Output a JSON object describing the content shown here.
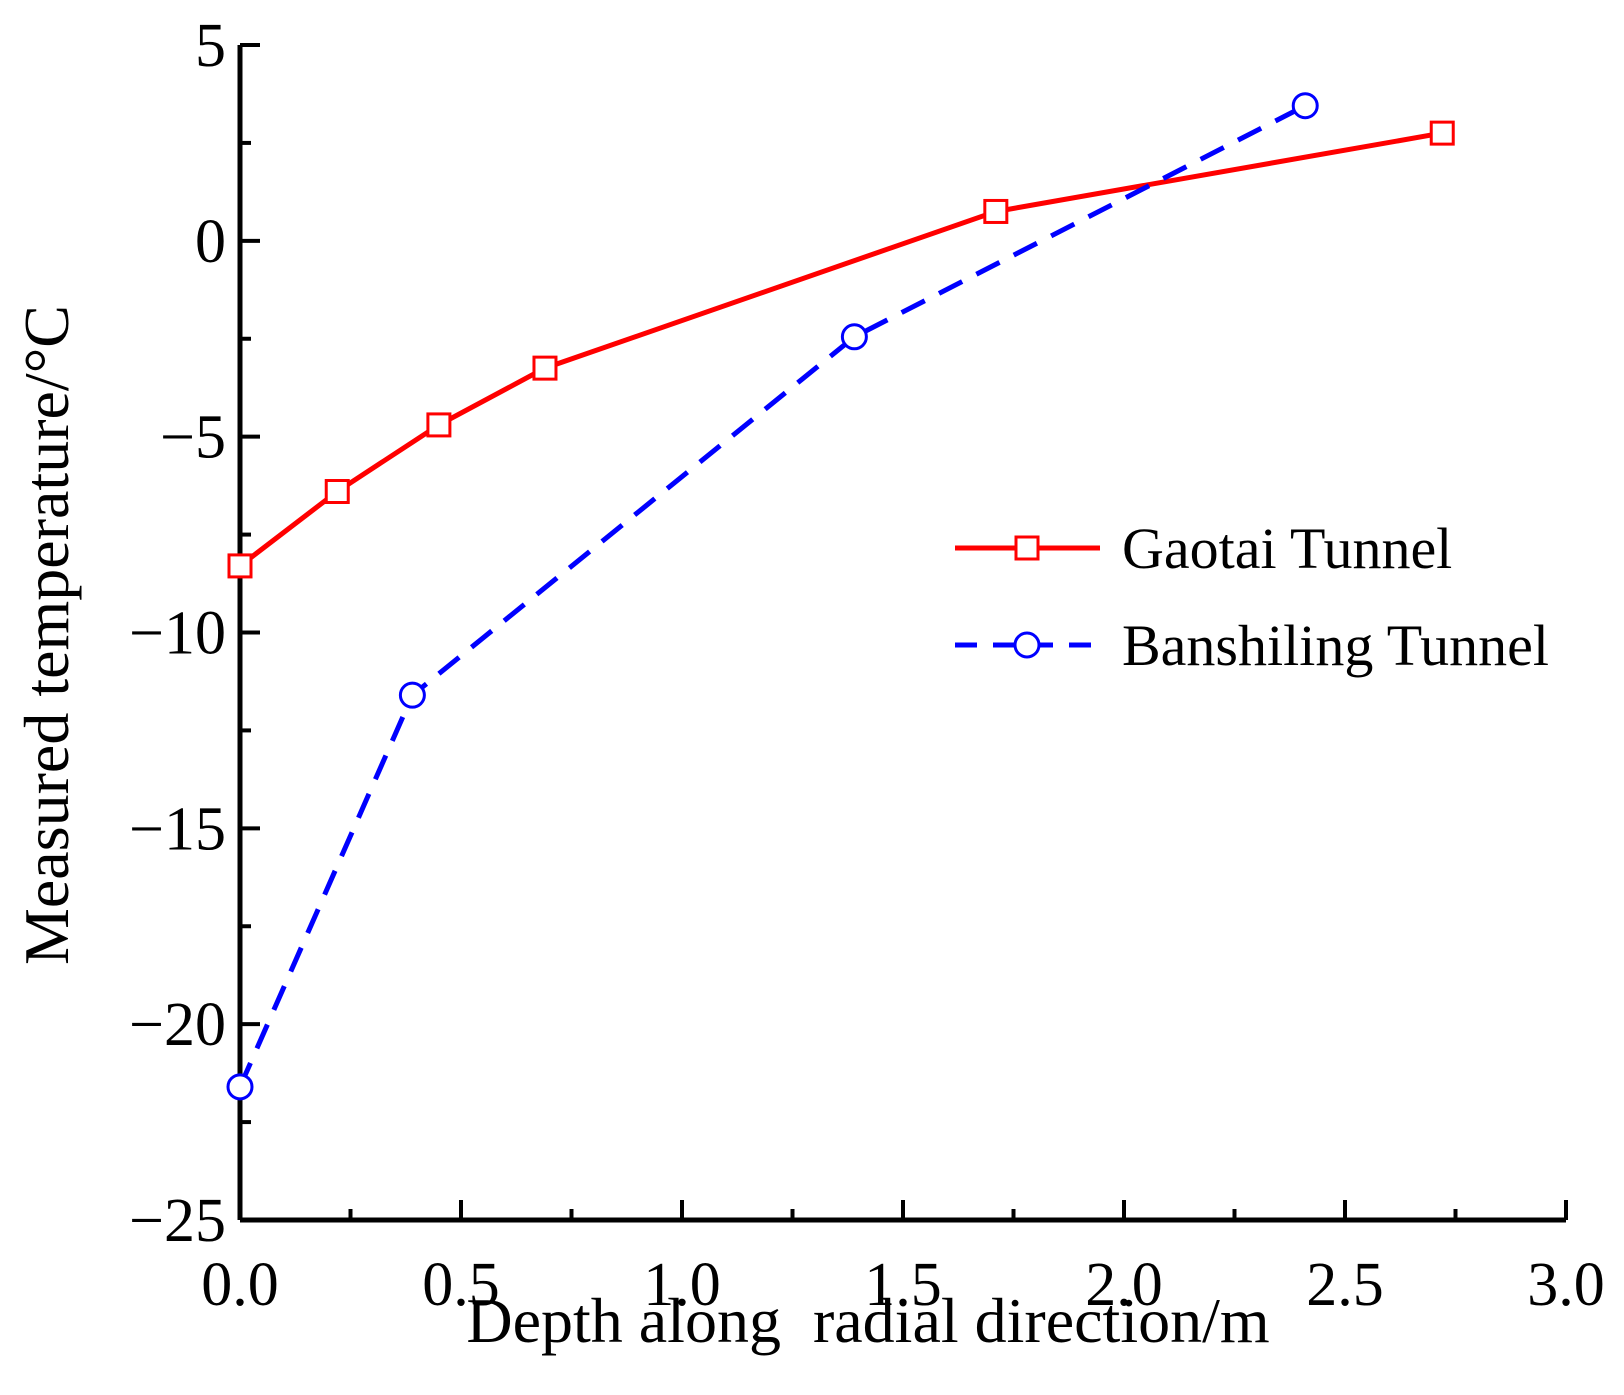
{
  "chart_data": {
    "type": "line",
    "title": "",
    "xlabel": "Depth along  radial direction/m",
    "ylabel": "Measured temperature/°C",
    "xlim": [
      0,
      3.0
    ],
    "ylim": [
      -25,
      5
    ],
    "x_ticks": [
      "0.0",
      "0.5",
      "1.0",
      "1.5",
      "2.0",
      "2.5",
      "3.0"
    ],
    "y_ticks": [
      "−25",
      "−20",
      "−15",
      "−10",
      "−5",
      "0",
      "5"
    ],
    "grid": false,
    "legend_position": "right",
    "series": [
      {
        "name": "Gaotai Tunnel",
        "color": "#ff0000",
        "line_style": "solid",
        "marker": "square",
        "x": [
          0.0,
          0.22,
          0.45,
          0.69,
          1.71,
          2.72
        ],
        "y": [
          -8.3,
          -6.4,
          -4.7,
          -3.25,
          0.75,
          2.75
        ]
      },
      {
        "name": "Banshiling Tunnel",
        "color": "#0000ff",
        "line_style": "dashed",
        "marker": "circle",
        "x": [
          0.0,
          0.39,
          1.39,
          2.41
        ],
        "y": [
          -21.6,
          -11.6,
          -2.45,
          3.45
        ]
      }
    ]
  }
}
